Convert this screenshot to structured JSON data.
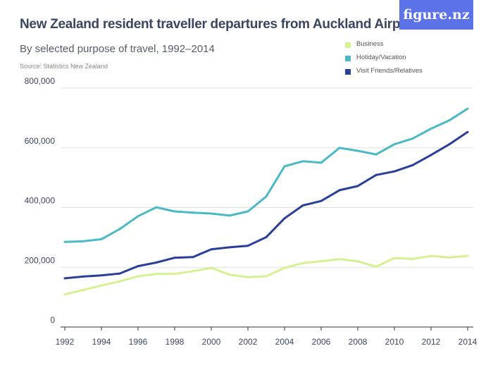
{
  "header": {
    "title": "New Zealand resident traveller departures from Auckland Airport",
    "subtitle": "By selected purpose of travel, 1992–2014",
    "source": "Source: Statistics New Zealand",
    "logo": "figure.nz"
  },
  "chart_data": {
    "type": "line",
    "title": "New Zealand resident traveller departures from Auckland Airport",
    "subtitle": "By selected purpose of travel, 1992–2014",
    "xlabel": "",
    "ylabel": "",
    "x": [
      1992,
      1993,
      1994,
      1995,
      1996,
      1997,
      1998,
      1999,
      2000,
      2001,
      2002,
      2003,
      2004,
      2005,
      2006,
      2007,
      2008,
      2009,
      2010,
      2011,
      2012,
      2013,
      2014
    ],
    "xticks": [
      "1992",
      "1994",
      "1996",
      "1998",
      "2000",
      "2002",
      "2004",
      "2006",
      "2008",
      "2010",
      "2012",
      "2014"
    ],
    "yticks": [
      "0",
      "200,000",
      "400,000",
      "600,000",
      "800,000"
    ],
    "ylim": [
      0,
      800000
    ],
    "grid": true,
    "legend_position": "top-right",
    "series": [
      {
        "name": "Business",
        "color": "#d4f291",
        "values": [
          109000,
          124000,
          139000,
          153000,
          170000,
          178000,
          178000,
          187000,
          198000,
          175000,
          167000,
          170000,
          198000,
          214000,
          220000,
          227000,
          220000,
          202000,
          231000,
          228000,
          238000,
          233000,
          238000
        ]
      },
      {
        "name": "Holiday/Vacation",
        "color": "#4bbac6",
        "values": [
          285000,
          287000,
          294000,
          328000,
          371000,
          401000,
          387000,
          383000,
          380000,
          373000,
          387000,
          437000,
          538000,
          555000,
          550000,
          600000,
          590000,
          578000,
          612000,
          631000,
          664000,
          692000,
          731000
        ]
      },
      {
        "name": "Visit Friends/Relatives",
        "color": "#2a3f99",
        "values": [
          163000,
          169000,
          173000,
          179000,
          204000,
          216000,
          232000,
          234000,
          260000,
          267000,
          272000,
          301000,
          364000,
          407000,
          422000,
          458000,
          472000,
          509000,
          521000,
          542000,
          576000,
          612000,
          653000
        ]
      }
    ]
  }
}
